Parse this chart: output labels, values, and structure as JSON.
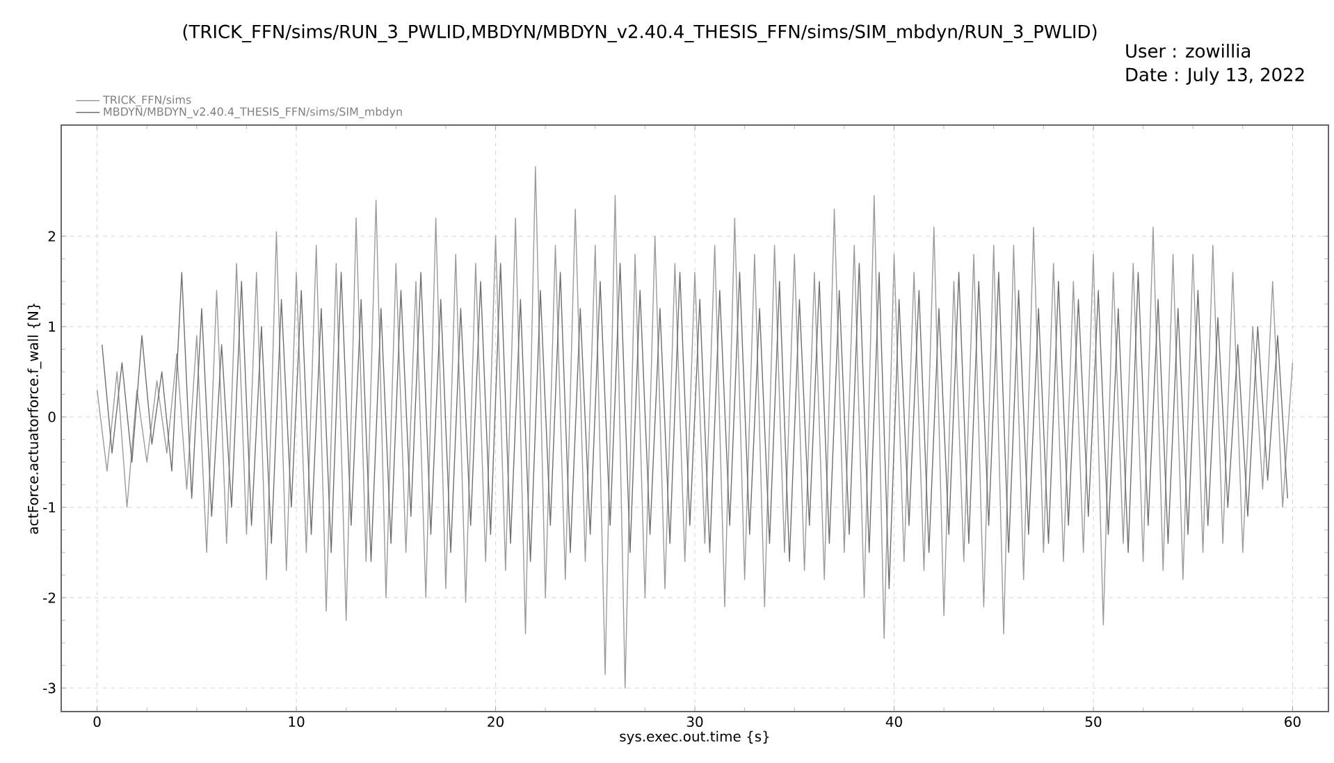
{
  "chart_data": {
    "type": "line",
    "subtitle": "(TRICK_FFN/sims/RUN_3_PWLID,MBDYN/MBDYN_v2.40.4_THESIS_FFN/sims/SIM_mbdyn/RUN_3_PWLID)",
    "xlabel": "sys.exec.out.time {s}",
    "ylabel": "actForce.actuatorforce.f_wall {N}",
    "annotations": [
      "User : zowillia",
      "Date : July 13, 2022"
    ],
    "xlim": [
      -1.8,
      61.8
    ],
    "ylim": [
      -3.26,
      3.23
    ],
    "xticks": [
      0,
      10,
      20,
      30,
      40,
      50,
      60
    ],
    "yticks": [
      -3,
      -2,
      -1,
      0,
      1,
      2
    ],
    "grid": true,
    "legend": "top left",
    "series": [
      {
        "name": "TRICK_FFN/sims",
        "color": "#9a9a9a",
        "x": [
          0,
          0.5,
          1,
          1.5,
          2,
          2.5,
          3,
          3.5,
          4,
          4.5,
          5,
          5.5,
          6,
          6.5,
          7,
          7.5,
          8,
          8.5,
          9,
          9.5,
          10,
          10.5,
          11,
          11.5,
          12,
          12.5,
          13,
          13.5,
          14,
          14.5,
          15,
          15.5,
          16,
          16.5,
          17,
          17.5,
          18,
          18.5,
          19,
          19.5,
          20,
          20.5,
          21,
          21.5,
          22,
          22.5,
          23,
          23.5,
          24,
          24.5,
          25,
          25.5,
          26,
          26.5,
          27,
          27.5,
          28,
          28.5,
          29,
          29.5,
          30,
          30.5,
          31,
          31.5,
          32,
          32.5,
          33,
          33.5,
          34,
          34.5,
          35,
          35.5,
          36,
          36.5,
          37,
          37.5,
          38,
          38.5,
          39,
          39.5,
          40,
          40.5,
          41,
          41.5,
          42,
          42.5,
          43,
          43.5,
          44,
          44.5,
          45,
          45.5,
          46,
          46.5,
          47,
          47.5,
          48,
          48.5,
          49,
          49.5,
          50,
          50.5,
          51,
          51.5,
          52,
          52.5,
          53,
          53.5,
          54,
          54.5,
          55,
          55.5,
          56,
          56.5,
          57,
          57.5,
          58,
          58.5,
          59,
          59.5,
          60
        ],
        "values": [
          0.3,
          -0.6,
          0.5,
          -1.0,
          0.3,
          -0.5,
          0.4,
          -0.4,
          0.7,
          -0.8,
          0.9,
          -1.5,
          1.4,
          -1.4,
          1.7,
          -1.3,
          1.6,
          -1.8,
          2.05,
          -1.7,
          1.6,
          -1.5,
          1.9,
          -2.15,
          1.7,
          -2.25,
          2.2,
          -1.6,
          2.4,
          -2.0,
          1.7,
          -1.5,
          1.5,
          -2.0,
          2.2,
          -1.9,
          1.8,
          -2.05,
          1.7,
          -1.6,
          2.0,
          -1.7,
          2.2,
          -2.4,
          2.77,
          -2.0,
          1.9,
          -1.8,
          2.3,
          -1.6,
          1.9,
          -2.85,
          2.45,
          -3.0,
          1.8,
          -2.0,
          2.0,
          -1.9,
          1.7,
          -1.6,
          1.6,
          -1.4,
          1.9,
          -2.1,
          2.2,
          -1.8,
          1.8,
          -2.1,
          1.9,
          -1.5,
          1.8,
          -1.7,
          1.6,
          -1.8,
          2.3,
          -1.5,
          1.9,
          -2.0,
          2.45,
          -2.45,
          1.8,
          -1.6,
          1.6,
          -1.7,
          2.1,
          -2.2,
          1.5,
          -1.6,
          1.8,
          -2.1,
          1.9,
          -2.4,
          1.9,
          -1.8,
          2.1,
          -1.5,
          1.7,
          -1.6,
          1.5,
          -1.5,
          1.8,
          -2.3,
          1.6,
          -1.4,
          1.7,
          -1.6,
          2.1,
          -1.7,
          1.8,
          -1.8,
          1.8,
          -1.5,
          1.9,
          -1.4,
          1.6,
          -1.5,
          1.0,
          -0.8,
          1.5,
          -1.0,
          0.6
        ]
      },
      {
        "name": "MBDYN/MBDYN_v2.40.4_THESIS_FFN/sims/SIM_mbdyn",
        "color": "#6e6e6e",
        "x": [
          0.25,
          0.75,
          1.25,
          1.75,
          2.25,
          2.75,
          3.25,
          3.75,
          4.25,
          4.75,
          5.25,
          5.75,
          6.25,
          6.75,
          7.25,
          7.75,
          8.25,
          8.75,
          9.25,
          9.75,
          10.25,
          10.75,
          11.25,
          11.75,
          12.25,
          12.75,
          13.25,
          13.75,
          14.25,
          14.75,
          15.25,
          15.75,
          16.25,
          16.75,
          17.25,
          17.75,
          18.25,
          18.75,
          19.25,
          19.75,
          20.25,
          20.75,
          21.25,
          21.75,
          22.25,
          22.75,
          23.25,
          23.75,
          24.25,
          24.75,
          25.25,
          25.75,
          26.25,
          26.75,
          27.25,
          27.75,
          28.25,
          28.75,
          29.25,
          29.75,
          30.25,
          30.75,
          31.25,
          31.75,
          32.25,
          32.75,
          33.25,
          33.75,
          34.25,
          34.75,
          35.25,
          35.75,
          36.25,
          36.75,
          37.25,
          37.75,
          38.25,
          38.75,
          39.25,
          39.75,
          40.25,
          40.75,
          41.25,
          41.75,
          42.25,
          42.75,
          43.25,
          43.75,
          44.25,
          44.75,
          45.25,
          45.75,
          46.25,
          46.75,
          47.25,
          47.75,
          48.25,
          48.75,
          49.25,
          49.75,
          50.25,
          50.75,
          51.25,
          51.75,
          52.25,
          52.75,
          53.25,
          53.75,
          54.25,
          54.75,
          55.25,
          55.75,
          56.25,
          56.75,
          57.25,
          57.75,
          58.25,
          58.75,
          59.25,
          59.75
        ],
        "values": [
          0.8,
          -0.4,
          0.6,
          -0.5,
          0.9,
          -0.3,
          0.5,
          -0.6,
          1.6,
          -0.9,
          1.2,
          -1.1,
          0.8,
          -1.0,
          1.5,
          -1.2,
          1.0,
          -1.4,
          1.3,
          -1.0,
          1.4,
          -1.3,
          1.2,
          -1.5,
          1.6,
          -1.2,
          1.3,
          -1.6,
          1.2,
          -1.4,
          1.4,
          -1.1,
          1.6,
          -1.3,
          1.3,
          -1.5,
          1.2,
          -1.2,
          1.5,
          -1.3,
          1.7,
          -1.4,
          1.3,
          -1.6,
          1.4,
          -1.2,
          1.6,
          -1.5,
          1.2,
          -1.3,
          1.5,
          -1.2,
          1.7,
          -1.5,
          1.4,
          -1.3,
          1.2,
          -1.4,
          1.6,
          -1.2,
          1.3,
          -1.5,
          1.4,
          -1.2,
          1.6,
          -1.3,
          1.2,
          -1.4,
          1.5,
          -1.6,
          1.3,
          -1.2,
          1.5,
          -1.4,
          1.4,
          -1.3,
          1.7,
          -1.5,
          1.6,
          -1.9,
          1.3,
          -1.2,
          1.4,
          -1.5,
          1.2,
          -1.3,
          1.6,
          -1.4,
          1.5,
          -1.2,
          1.6,
          -1.5,
          1.4,
          -1.3,
          1.2,
          -1.4,
          1.5,
          -1.2,
          1.3,
          -1.1,
          1.4,
          -1.3,
          1.2,
          -1.5,
          1.6,
          -1.2,
          1.3,
          -1.4,
          1.2,
          -1.3,
          1.4,
          -1.2,
          1.1,
          -1.0,
          0.8,
          -1.1,
          1.0,
          -0.7,
          0.9,
          -0.9
        ]
      }
    ]
  }
}
